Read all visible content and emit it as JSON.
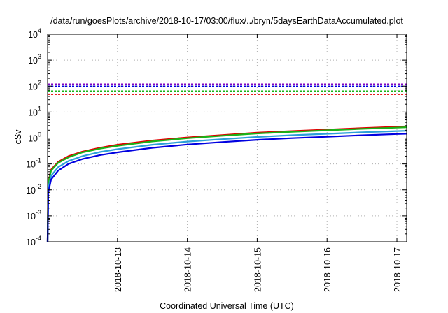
{
  "chart_data": {
    "type": "line",
    "title": "/data/run/goesPlots/archive/2018-10-17/03:00/flux/../bryn/5daysEarthDataAccumulated.plot",
    "xlabel": "Coordinated Universal Time (UTC)",
    "ylabel": "cSv",
    "yscale": "log",
    "ylim": [
      0.0001,
      10000
    ],
    "xlim": [
      0.0,
      5.14
    ],
    "x_tick_labels": [
      {
        "x": 1.0,
        "label": "2018-10-13"
      },
      {
        "x": 2.0,
        "label": "2018-10-14"
      },
      {
        "x": 3.0,
        "label": "2018-10-15"
      },
      {
        "x": 4.0,
        "label": "2018-10-16"
      },
      {
        "x": 5.0,
        "label": "2018-10-17"
      }
    ],
    "y_tick_labels": [
      {
        "y": 0.0001,
        "base": "10",
        "exp": "-4"
      },
      {
        "y": 0.001,
        "base": "10",
        "exp": "-3"
      },
      {
        "y": 0.01,
        "base": "10",
        "exp": "-2"
      },
      {
        "y": 0.1,
        "base": "10",
        "exp": "-1"
      },
      {
        "y": 1,
        "base": "10",
        "exp": "0"
      },
      {
        "y": 10,
        "base": "10",
        "exp": "1"
      },
      {
        "y": 100,
        "base": "10",
        "exp": "2"
      },
      {
        "y": 1000,
        "base": "10",
        "exp": "3"
      },
      {
        "y": 10000,
        "base": "10",
        "exp": "4"
      }
    ],
    "grid": true,
    "colors": {
      "grid": "#b0b0b0",
      "axis": "#000000",
      "red": "#e00000",
      "green": "#18b418",
      "cyan": "#2aa0d8",
      "blue": "#0000e0",
      "purple": "#8000c0"
    },
    "threshold_lines": [
      {
        "color": "purple",
        "y": 120,
        "style": "dashed"
      },
      {
        "color": "blue",
        "y": 100,
        "style": "dashed"
      },
      {
        "color": "green",
        "y": 65,
        "style": "dashed"
      },
      {
        "color": "red",
        "y": 48,
        "style": "dashed"
      }
    ],
    "series": [
      {
        "color": "red",
        "points": [
          [
            0.0,
            0.0001
          ],
          [
            0.01,
            0.02
          ],
          [
            0.05,
            0.06
          ],
          [
            0.15,
            0.12
          ],
          [
            0.3,
            0.2
          ],
          [
            0.5,
            0.3
          ],
          [
            0.75,
            0.42
          ],
          [
            1.0,
            0.55
          ],
          [
            1.5,
            0.8
          ],
          [
            2.0,
            1.05
          ],
          [
            2.5,
            1.3
          ],
          [
            3.0,
            1.6
          ],
          [
            3.5,
            1.85
          ],
          [
            4.0,
            2.1
          ],
          [
            4.5,
            2.4
          ],
          [
            5.0,
            2.7
          ],
          [
            5.14,
            2.8
          ]
        ]
      },
      {
        "color": "green",
        "points": [
          [
            0.0,
            0.0001
          ],
          [
            0.01,
            0.018
          ],
          [
            0.05,
            0.055
          ],
          [
            0.15,
            0.11
          ],
          [
            0.3,
            0.18
          ],
          [
            0.5,
            0.28
          ],
          [
            0.75,
            0.39
          ],
          [
            1.0,
            0.5
          ],
          [
            1.5,
            0.74
          ],
          [
            2.0,
            0.98
          ],
          [
            2.5,
            1.22
          ],
          [
            3.0,
            1.5
          ],
          [
            3.5,
            1.73
          ],
          [
            4.0,
            1.98
          ],
          [
            4.5,
            2.25
          ],
          [
            5.0,
            2.5
          ],
          [
            5.14,
            2.6
          ]
        ]
      },
      {
        "color": "cyan",
        "points": [
          [
            0.0,
            0.0001
          ],
          [
            0.01,
            0.011
          ],
          [
            0.05,
            0.035
          ],
          [
            0.15,
            0.075
          ],
          [
            0.3,
            0.13
          ],
          [
            0.5,
            0.2
          ],
          [
            0.75,
            0.29
          ],
          [
            1.0,
            0.37
          ],
          [
            1.5,
            0.55
          ],
          [
            2.0,
            0.73
          ],
          [
            2.5,
            0.9
          ],
          [
            3.0,
            1.1
          ],
          [
            3.5,
            1.28
          ],
          [
            4.0,
            1.45
          ],
          [
            4.5,
            1.65
          ],
          [
            5.0,
            1.85
          ],
          [
            5.14,
            1.9
          ]
        ]
      },
      {
        "color": "blue",
        "points": [
          [
            0.0,
            0.0001
          ],
          [
            0.01,
            0.008
          ],
          [
            0.05,
            0.025
          ],
          [
            0.15,
            0.055
          ],
          [
            0.3,
            0.1
          ],
          [
            0.5,
            0.155
          ],
          [
            0.75,
            0.22
          ],
          [
            1.0,
            0.28
          ],
          [
            1.5,
            0.42
          ],
          [
            2.0,
            0.56
          ],
          [
            2.5,
            0.7
          ],
          [
            3.0,
            0.85
          ],
          [
            3.5,
            0.99
          ],
          [
            4.0,
            1.12
          ],
          [
            4.5,
            1.27
          ],
          [
            5.0,
            1.42
          ],
          [
            5.14,
            1.46
          ]
        ]
      }
    ]
  }
}
